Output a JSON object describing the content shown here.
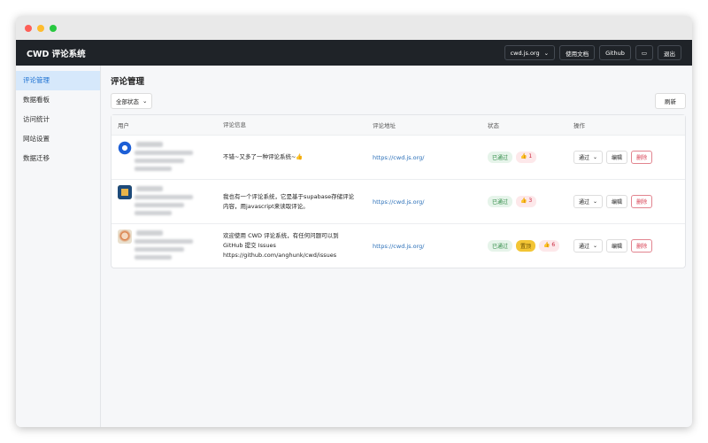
{
  "header": {
    "title": "CWD 评论系统",
    "site_select": "cwd.js.org",
    "docs": "使用文档",
    "github": "Github",
    "logout": "退出"
  },
  "sidebar": {
    "items": [
      {
        "label": "评论管理",
        "active": true
      },
      {
        "label": "数据看板"
      },
      {
        "label": "访问统计"
      },
      {
        "label": "网站设置"
      },
      {
        "label": "数据迁移"
      }
    ]
  },
  "main": {
    "title": "评论管理",
    "filter": "全部状态",
    "refresh": "刷新",
    "columns": [
      "用户",
      "评论信息",
      "评论地址",
      "状态",
      "操作"
    ],
    "rows": [
      {
        "avatar": "blue-circle-avatar",
        "comment": [
          "不错~又多了一种评论系统~👍"
        ],
        "url": "https://cwd.js.org/",
        "status": "已通过",
        "pinned": null,
        "likes": "1",
        "action": "通过",
        "edit": "编辑",
        "delete": "删除"
      },
      {
        "avatar": "pixel-avatar",
        "comment": [
          "我也有一个评论系统，它是基于supabase存储评论",
          "内容，用javascript来读取评论。"
        ],
        "url": "https://cwd.js.org/",
        "status": "已通过",
        "pinned": null,
        "likes": "3",
        "action": "通过",
        "edit": "编辑",
        "delete": "删除"
      },
      {
        "avatar": "anime-avatar",
        "comment": [
          "欢迎使用 CWD 评论系统，有任何问题可以到",
          "GitHub 提交 Issues",
          "https://github.com/anghunk/cwd/issues"
        ],
        "url": "https://cwd.js.org/",
        "status": "已通过",
        "pinned": "置顶",
        "likes": "6",
        "action": "通过",
        "edit": "编辑",
        "delete": "删除"
      }
    ]
  },
  "colors": {
    "header_bg": "#1f2328",
    "accent": "#1a6fd1",
    "danger": "#d63b4e",
    "success": "#2f8a45"
  }
}
